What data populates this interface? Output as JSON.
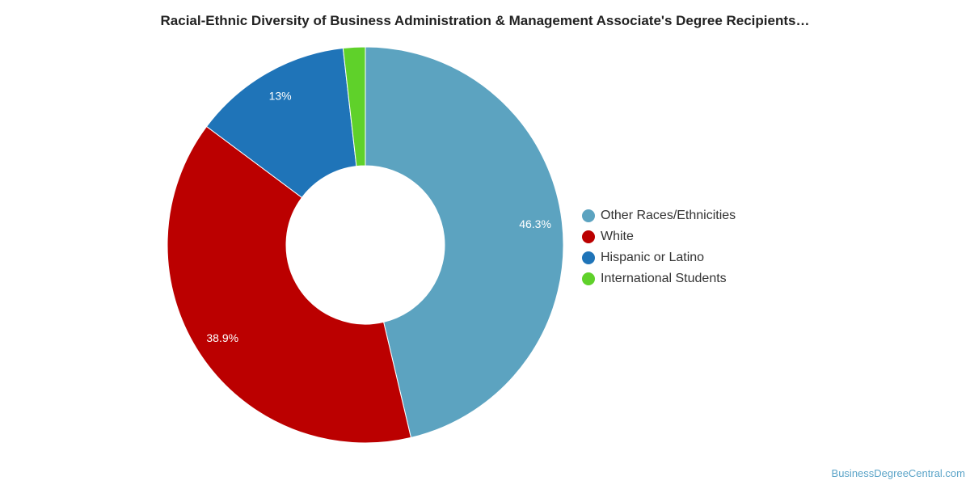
{
  "chart_data": {
    "type": "pie",
    "variant": "donut",
    "title": "Racial-Ethnic Diversity of Business Administration & Management Associate's Degree Recipients…",
    "categories": [
      "Other Races/Ethnicities",
      "White",
      "Hispanic or Latino",
      "International Students"
    ],
    "values": [
      46.3,
      38.9,
      13,
      1.8
    ],
    "data_labels": [
      "46.3%",
      "38.9%",
      "13%",
      ""
    ],
    "colors": [
      "#5ca3c0",
      "#bb0000",
      "#1f74b8",
      "#5fd12a"
    ],
    "legend_position": "right",
    "start_angle": "top",
    "direction": "clockwise"
  },
  "legend": {
    "items": [
      {
        "label": "Other Races/Ethnicities",
        "color": "#5ca3c0"
      },
      {
        "label": "White",
        "color": "#bb0000"
      },
      {
        "label": "Hispanic or Latino",
        "color": "#1f74b8"
      },
      {
        "label": "International Students",
        "color": "#5fd12a"
      }
    ]
  },
  "footer": {
    "source": "BusinessDegreeCentral.com"
  }
}
